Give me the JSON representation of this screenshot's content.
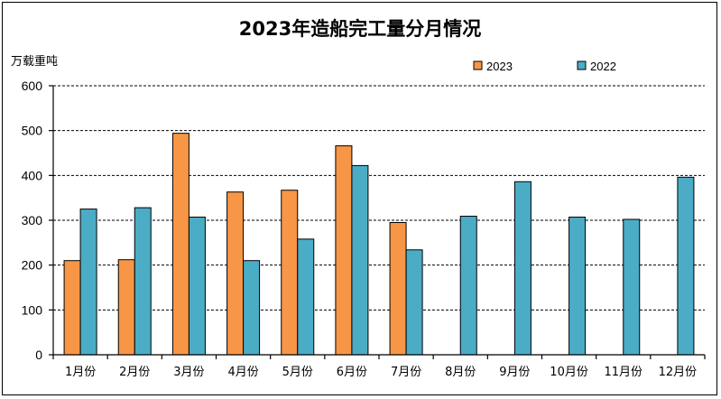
{
  "chart_data": {
    "type": "bar",
    "title": "2023年造船完工量分月情况",
    "ylabel": "万载重吨",
    "xlabel": "",
    "ylim": [
      0,
      600
    ],
    "yticks": [
      0,
      100,
      200,
      300,
      400,
      500,
      600
    ],
    "grid": true,
    "legend_position": "top-right",
    "categories": [
      "1月份",
      "2月份",
      "3月份",
      "4月份",
      "5月份",
      "6月份",
      "7月份",
      "8月份",
      "9月份",
      "10月份",
      "11月份",
      "12月份"
    ],
    "series": [
      {
        "name": "2023",
        "color": "#F79646",
        "values": [
          210,
          212,
          494,
          363,
          367,
          466,
          295,
          null,
          null,
          null,
          null,
          null
        ]
      },
      {
        "name": "2022",
        "color": "#4BACC6",
        "values": [
          325,
          328,
          307,
          210,
          258,
          422,
          234,
          309,
          386,
          307,
          302,
          396
        ]
      }
    ]
  }
}
